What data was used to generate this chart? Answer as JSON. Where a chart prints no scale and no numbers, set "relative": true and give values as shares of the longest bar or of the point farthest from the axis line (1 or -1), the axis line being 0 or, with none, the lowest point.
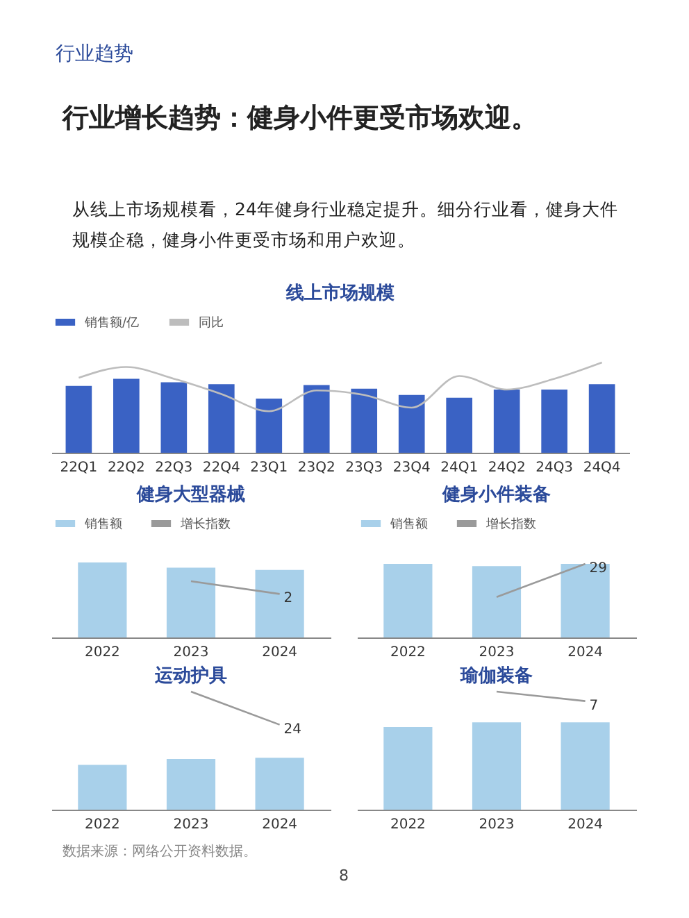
{
  "chart_data": [
    {
      "type": "other",
      "title": "行业增长趋势：健身小件更受市场欢迎。",
      "subtitle": "从线上市场规模看，24年健身行业稳定提升。细分行业看，健身大件规模企稳，健身小件更受市场和用户欢迎。",
      "annotations": [
        "行业趋势",
        "数据来源：网络公开资料数据。",
        "8"
      ]
    },
    {
      "type": "bar",
      "title": "线上市场规模",
      "relative": true,
      "legend": "top",
      "categories": [
        "22Q1",
        "22Q2",
        "22Q3",
        "22Q4",
        "23Q1",
        "23Q2",
        "23Q3",
        "23Q4",
        "24Q1",
        "24Q2",
        "24Q3",
        "24Q4"
      ],
      "series": [
        {
          "name": "销售额/亿",
          "color": "#3a62c4",
          "values": [
            0.74,
            0.82,
            0.78,
            0.76,
            0.6,
            0.75,
            0.71,
            0.64,
            0.61,
            0.7,
            0.7,
            0.76
          ]
        },
        {
          "name": "同比",
          "type": "line",
          "color": "#bdbdbd",
          "values": [
            0.83,
            0.95,
            0.82,
            0.65,
            0.46,
            0.69,
            0.64,
            0.5,
            0.85,
            0.7,
            0.82,
            1
          ]
        }
      ]
    },
    {
      "type": "bar",
      "title": "健身大型器械",
      "relative": true,
      "legend": "top",
      "categories": [
        "2022",
        "2023",
        "2024"
      ],
      "series": [
        {
          "name": "销售额",
          "color": "#a8d0ea",
          "values": [
            1,
            0.93,
            0.9
          ]
        },
        {
          "name": "增长指数",
          "type": "line",
          "color": "#9a9a9a",
          "values": [
            null,
            0.75,
            0.58
          ]
        }
      ],
      "annotations": [
        {
          "text": "2",
          "x": "2024",
          "y": 0.58
        }
      ]
    },
    {
      "type": "bar",
      "title": "健身小件装备",
      "relative": true,
      "legend": "top",
      "categories": [
        "2022",
        "2023",
        "2024"
      ],
      "series": [
        {
          "name": "销售额",
          "color": "#a8d0ea",
          "values": [
            1,
            0.97,
            1
          ]
        },
        {
          "name": "增长指数",
          "type": "line",
          "color": "#9a9a9a",
          "values": [
            null,
            0.55,
            1
          ]
        }
      ],
      "annotations": [
        {
          "text": "29",
          "x": "2024",
          "y": 1
        }
      ]
    },
    {
      "type": "bar",
      "title": "运动护具",
      "relative": true,
      "categories": [
        "2022",
        "2023",
        "2024"
      ],
      "series": [
        {
          "color": "#a8d0ea",
          "values": [
            0.38,
            0.43,
            0.44
          ]
        },
        {
          "type": "line",
          "color": "#9a9a9a",
          "values": [
            null,
            1,
            0.72
          ]
        }
      ],
      "annotations": [
        {
          "text": "24",
          "x": "2024",
          "y": 0.72
        }
      ]
    },
    {
      "type": "bar",
      "title": "瑜伽装备",
      "relative": true,
      "categories": [
        "2022",
        "2023",
        "2024"
      ],
      "series": [
        {
          "color": "#a8d0ea",
          "values": [
            0.7,
            0.74,
            0.74
          ]
        },
        {
          "type": "line",
          "color": "#9a9a9a",
          "values": [
            null,
            1,
            0.92
          ]
        }
      ],
      "annotations": [
        {
          "text": "7",
          "x": "2024",
          "y": 0.92
        }
      ]
    }
  ]
}
